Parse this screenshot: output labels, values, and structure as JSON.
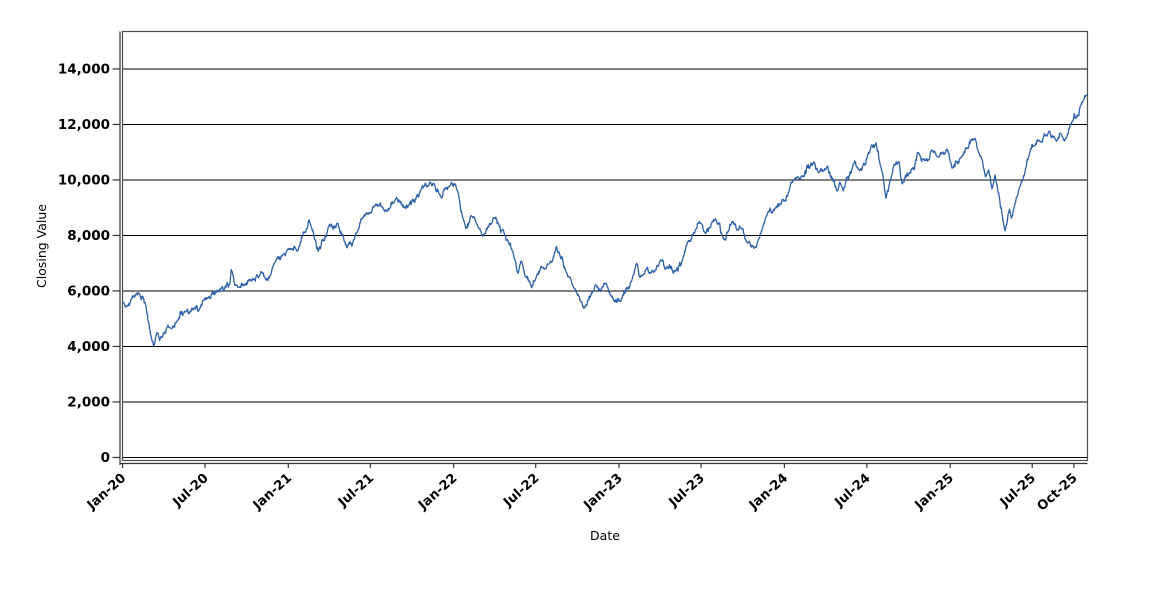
{
  "page": {
    "background_color": "#ffffff",
    "text_color": "#000000"
  },
  "chart_data": {
    "type": "line",
    "title": "",
    "xlabel": "Date",
    "ylabel": "Closing Value",
    "legend": "none",
    "grid": "horizontal-only",
    "x_domain": [
      "2020-01-01",
      "2025-10-31"
    ],
    "ylim": [
      -110,
      15350
    ],
    "colors": {
      "line": "#2b61a8",
      "gridline": "#000000",
      "plot_border": "#4d4d4d",
      "axis_line": "#333333",
      "text": "#000000"
    },
    "y_ticks": [
      {
        "value": 0,
        "label": "0"
      },
      {
        "value": 2000,
        "label": "2,000"
      },
      {
        "value": 4000,
        "label": "4,000"
      },
      {
        "value": 6000,
        "label": "6,000"
      },
      {
        "value": 8000,
        "label": "8,000"
      },
      {
        "value": 10000,
        "label": "10,000"
      },
      {
        "value": 12000,
        "label": "12,000"
      },
      {
        "value": 14000,
        "label": "14,000"
      }
    ],
    "x_ticks": [
      {
        "date": "2020-01-01",
        "label": "Jan-20"
      },
      {
        "date": "2020-07-01",
        "label": "Jul-20"
      },
      {
        "date": "2021-01-01",
        "label": "Jan-21"
      },
      {
        "date": "2021-07-01",
        "label": "Jul-21"
      },
      {
        "date": "2022-01-01",
        "label": "Jan-22"
      },
      {
        "date": "2022-07-01",
        "label": "Jul-22"
      },
      {
        "date": "2023-01-01",
        "label": "Jan-23"
      },
      {
        "date": "2023-07-01",
        "label": "Jul-23"
      },
      {
        "date": "2024-01-01",
        "label": "Jan-24"
      },
      {
        "date": "2024-07-01",
        "label": "Jul-24"
      },
      {
        "date": "2025-01-01",
        "label": "Jan-25"
      },
      {
        "date": "2025-07-01",
        "label": "Jul-25"
      },
      {
        "date": "2025-10-01",
        "label": "Oct-25"
      }
    ],
    "series": [
      {
        "name": "Closing Value",
        "color": "#2b61a8",
        "anchors": [
          [
            "2020-01-01",
            5580
          ],
          [
            "2020-01-12",
            5500
          ],
          [
            "2020-02-05",
            5950
          ],
          [
            "2020-02-15",
            5800
          ],
          [
            "2020-03-10",
            4020
          ],
          [
            "2020-03-17",
            4460
          ],
          [
            "2020-03-23",
            4180
          ],
          [
            "2020-04-10",
            4760
          ],
          [
            "2020-04-18",
            4640
          ],
          [
            "2020-05-01",
            4940
          ],
          [
            "2020-05-20",
            5240
          ],
          [
            "2020-06-05",
            5300
          ],
          [
            "2020-06-20",
            5390
          ],
          [
            "2020-07-01",
            5720
          ],
          [
            "2020-08-05",
            6050
          ],
          [
            "2020-08-25",
            6230
          ],
          [
            "2020-08-28",
            6750
          ],
          [
            "2020-09-05",
            6200
          ],
          [
            "2020-09-25",
            6150
          ],
          [
            "2020-10-10",
            6400
          ],
          [
            "2020-11-02",
            6690
          ],
          [
            "2020-11-13",
            6390
          ],
          [
            "2020-12-03",
            7050
          ],
          [
            "2020-12-20",
            7300
          ],
          [
            "2021-01-01",
            7550
          ],
          [
            "2021-01-20",
            7450
          ],
          [
            "2021-02-16",
            8550
          ],
          [
            "2021-03-08",
            7420
          ],
          [
            "2021-03-30",
            8310
          ],
          [
            "2021-04-20",
            8430
          ],
          [
            "2021-05-11",
            7540
          ],
          [
            "2021-06-02",
            8140
          ],
          [
            "2021-06-15",
            8610
          ],
          [
            "2021-07-01",
            8850
          ],
          [
            "2021-07-23",
            9200
          ],
          [
            "2021-08-02",
            8850
          ],
          [
            "2021-08-26",
            9320
          ],
          [
            "2021-09-14",
            9025
          ],
          [
            "2021-10-10",
            9350
          ],
          [
            "2021-10-20",
            9600
          ],
          [
            "2021-11-10",
            9920
          ],
          [
            "2021-12-04",
            9380
          ],
          [
            "2021-12-24",
            9800
          ],
          [
            "2022-01-05",
            9850
          ],
          [
            "2022-01-28",
            8250
          ],
          [
            "2022-02-09",
            8725
          ],
          [
            "2022-03-08",
            8010
          ],
          [
            "2022-04-01",
            8650
          ],
          [
            "2022-04-30",
            7830
          ],
          [
            "2022-05-12",
            7420
          ],
          [
            "2022-05-23",
            6640
          ],
          [
            "2022-05-31",
            7060
          ],
          [
            "2022-06-08",
            6520
          ],
          [
            "2022-06-22",
            6100
          ],
          [
            "2022-07-03",
            6550
          ],
          [
            "2022-08-02",
            7060
          ],
          [
            "2022-08-16",
            7600
          ],
          [
            "2022-09-08",
            6670
          ],
          [
            "2022-09-19",
            6240
          ],
          [
            "2022-09-30",
            5900
          ],
          [
            "2022-10-18",
            5380
          ],
          [
            "2022-11-10",
            6210
          ],
          [
            "2022-11-21",
            5980
          ],
          [
            "2022-12-02",
            6270
          ],
          [
            "2022-12-20",
            5680
          ],
          [
            "2023-01-05",
            5620
          ],
          [
            "2023-01-29",
            6390
          ],
          [
            "2023-02-09",
            6990
          ],
          [
            "2023-02-16",
            6520
          ],
          [
            "2023-03-01",
            6780
          ],
          [
            "2023-03-20",
            6700
          ],
          [
            "2023-04-03",
            7100
          ],
          [
            "2023-04-14",
            6750
          ],
          [
            "2023-05-06",
            6700
          ],
          [
            "2023-05-20",
            7080
          ],
          [
            "2023-06-01",
            7740
          ],
          [
            "2023-06-15",
            8100
          ],
          [
            "2023-06-30",
            8430
          ],
          [
            "2023-07-11",
            8070
          ],
          [
            "2023-08-02",
            8600
          ],
          [
            "2023-08-20",
            7890
          ],
          [
            "2023-09-07",
            8490
          ],
          [
            "2023-09-18",
            8190
          ],
          [
            "2023-09-28",
            8230
          ],
          [
            "2023-10-06",
            7890
          ],
          [
            "2023-10-28",
            7600
          ],
          [
            "2023-11-12",
            8190
          ],
          [
            "2023-11-26",
            8850
          ],
          [
            "2023-12-11",
            8960
          ],
          [
            "2023-12-27",
            9300
          ],
          [
            "2024-01-08",
            9400
          ],
          [
            "2024-01-15",
            9900
          ],
          [
            "2024-01-25",
            10050
          ],
          [
            "2024-02-10",
            10150
          ],
          [
            "2024-03-07",
            10630
          ],
          [
            "2024-03-18",
            10270
          ],
          [
            "2024-04-05",
            10510
          ],
          [
            "2024-04-28",
            9620
          ],
          [
            "2024-05-06",
            9800
          ],
          [
            "2024-05-10",
            9580
          ],
          [
            "2024-06-01",
            10570
          ],
          [
            "2024-06-15",
            10330
          ],
          [
            "2024-07-03",
            10930
          ],
          [
            "2024-07-21",
            11345
          ],
          [
            "2024-08-05",
            10270
          ],
          [
            "2024-08-12",
            9350
          ],
          [
            "2024-08-30",
            10570
          ],
          [
            "2024-09-10",
            10690
          ],
          [
            "2024-09-17",
            9860
          ],
          [
            "2024-10-09",
            10450
          ],
          [
            "2024-10-24",
            10930
          ],
          [
            "2024-11-08",
            10690
          ],
          [
            "2024-11-22",
            11050
          ],
          [
            "2024-12-06",
            10810
          ],
          [
            "2024-12-25",
            11110
          ],
          [
            "2025-01-05",
            10450
          ],
          [
            "2025-01-24",
            10810
          ],
          [
            "2025-02-08",
            11170
          ],
          [
            "2025-02-25",
            11500
          ],
          [
            "2025-03-13",
            10710
          ],
          [
            "2025-03-20",
            10120
          ],
          [
            "2025-03-27",
            10360
          ],
          [
            "2025-04-03",
            9680
          ],
          [
            "2025-04-10",
            10180
          ],
          [
            "2025-04-29",
            8450
          ],
          [
            "2025-05-02",
            8190
          ],
          [
            "2025-05-12",
            8960
          ],
          [
            "2025-05-16",
            8610
          ],
          [
            "2025-06-02",
            9680
          ],
          [
            "2025-06-13",
            10120
          ],
          [
            "2025-06-25",
            10930
          ],
          [
            "2025-07-06",
            11225
          ],
          [
            "2025-07-17",
            11405
          ],
          [
            "2025-07-28",
            11700
          ],
          [
            "2025-08-08",
            11760
          ],
          [
            "2025-08-23",
            11400
          ],
          [
            "2025-09-03",
            11640
          ],
          [
            "2025-09-10",
            11400
          ],
          [
            "2025-09-25",
            12000
          ],
          [
            "2025-10-02",
            12420
          ],
          [
            "2025-10-06",
            12240
          ],
          [
            "2025-10-17",
            12710
          ],
          [
            "2025-10-22",
            12890
          ],
          [
            "2025-10-29",
            13050
          ]
        ]
      }
    ],
    "noise": {
      "seed": 42,
      "sigma": 80,
      "phi": 0.78,
      "clamp": 210
    }
  }
}
